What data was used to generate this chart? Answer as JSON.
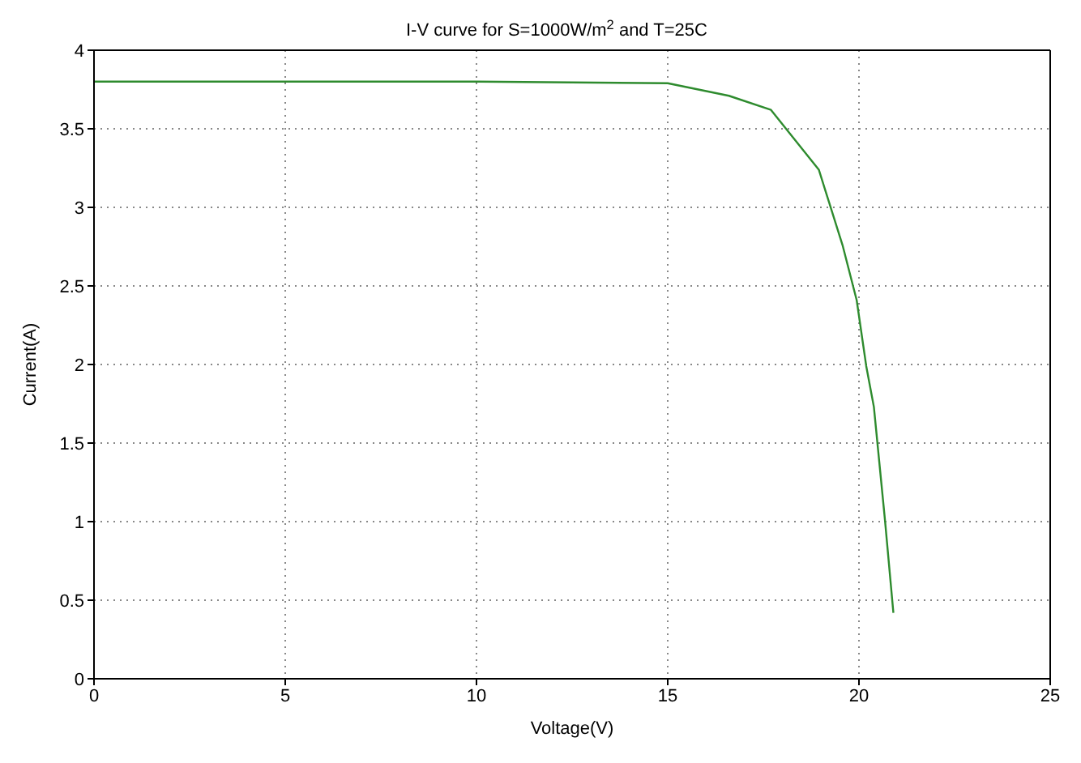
{
  "chart_data": {
    "type": "line",
    "title": "I-V curve for S=1000W/m$^{2}$ and T=25C",
    "xlabel": "Voltage(V)",
    "ylabel": "Current(A)",
    "x": [
      0,
      5,
      10,
      15,
      16.6,
      17.7,
      18.95,
      19.57,
      19.94,
      20.19,
      20.39,
      20.68,
      20.9
    ],
    "series": [
      {
        "color": "#2e8b2e",
        "values": [
          3.8,
          3.8,
          3.8,
          3.79,
          3.71,
          3.62,
          3.24,
          2.76,
          2.41,
          1.99,
          1.73,
          1.01,
          0.42
        ]
      }
    ],
    "xlim": [
      0,
      25
    ],
    "xticks": [
      0,
      5,
      10,
      15,
      20,
      25
    ],
    "ylim": [
      0,
      4
    ],
    "yticks": [
      0,
      0.5,
      1,
      1.5,
      2,
      2.5,
      3,
      3.5,
      4
    ],
    "grid": true,
    "marker": "none",
    "line_style": "solid"
  }
}
